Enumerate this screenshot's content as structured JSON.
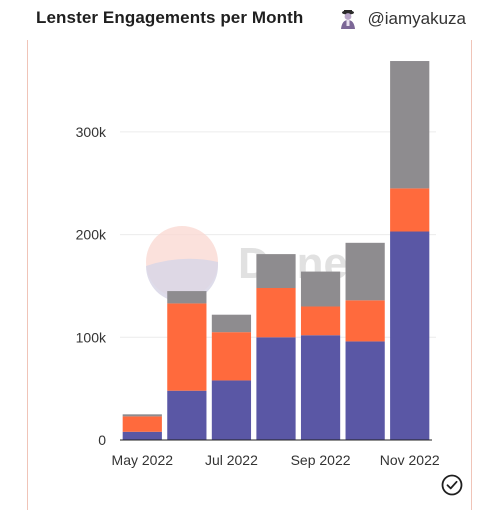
{
  "header": {
    "title": "Lenster Engagements per Month",
    "author_handle": "@iamyakuza",
    "avatar_icon": "avatar-icon"
  },
  "watermark": {
    "text": "Dune"
  },
  "footer": {
    "check_icon": "check-circle-icon"
  },
  "colors": {
    "series_1": "#5a57a5",
    "series_2": "#ff6a3d",
    "series_3": "#8e8c8f",
    "grid": "#ececec",
    "axis": "#222222"
  },
  "chart_data": {
    "type": "bar",
    "stacked": true,
    "title": "Lenster Engagements per Month",
    "xlabel": "",
    "ylabel": "",
    "categories": [
      "2022-05",
      "2022-06",
      "2022-07",
      "2022-08",
      "2022-09",
      "2022-10",
      "2022-11"
    ],
    "x_tick_labels": [
      {
        "category": "2022-05",
        "label": "May 2022"
      },
      {
        "category": "2022-07",
        "label": "Jul 2022"
      },
      {
        "category": "2022-09",
        "label": "Sep 2022"
      },
      {
        "category": "2022-11",
        "label": "Nov 2022"
      }
    ],
    "series": [
      {
        "values": [
          8000,
          48000,
          58000,
          100000,
          102000,
          96000,
          203000
        ]
      },
      {
        "values": [
          15000,
          85000,
          47000,
          48000,
          28000,
          40000,
          42000
        ]
      },
      {
        "values": [
          2000,
          12000,
          17000,
          33000,
          34000,
          56000,
          124000
        ]
      }
    ],
    "ylim": [
      0,
      370000
    ],
    "y_ticks": [
      {
        "value": 0,
        "label": "0"
      },
      {
        "value": 100000,
        "label": "100k"
      },
      {
        "value": 200000,
        "label": "200k"
      },
      {
        "value": 300000,
        "label": "300k"
      }
    ],
    "grid": true,
    "legend": "none"
  }
}
